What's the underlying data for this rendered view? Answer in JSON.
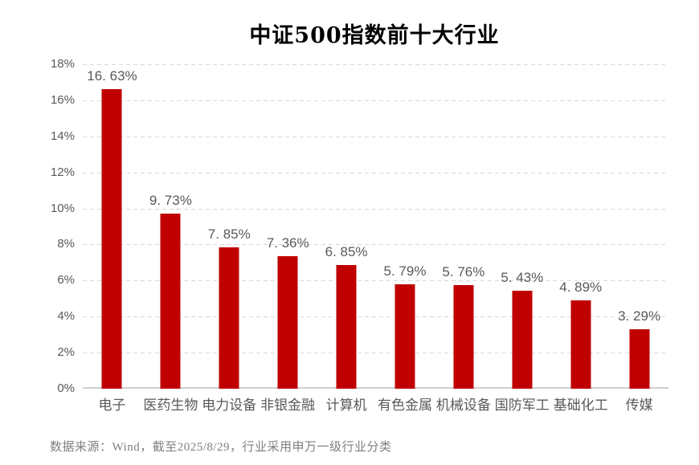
{
  "title": "中证500指数前十大行业",
  "source_note": "数据来源：Wind，截至2025/8/29，行业采用申万一级行业分类",
  "colors": {
    "bar": "#c00000",
    "gridline": "#d9d9d9",
    "axis_line": "#cfcfcf",
    "tick_label": "#595959",
    "value_label": "#595959",
    "category_label": "#595959",
    "source_note": "#7f7f7f",
    "title": "#000000",
    "background": "#ffffff"
  },
  "chart_data": {
    "type": "bar",
    "title": "中证500指数前十大行业",
    "categories": [
      "电子",
      "医药生物",
      "电力设备",
      "非银金融",
      "计算机",
      "有色金属",
      "机械设备",
      "国防军工",
      "基础化工",
      "传媒"
    ],
    "values": [
      16.63,
      9.73,
      7.85,
      7.36,
      6.85,
      5.79,
      5.76,
      5.43,
      4.89,
      3.29
    ],
    "data_labels": [
      "16. 63%",
      "9. 73%",
      "7. 85%",
      "7. 36%",
      "6. 85%",
      "5. 79%",
      "5. 76%",
      "5. 43%",
      "4. 89%",
      "3. 29%"
    ],
    "y_ticks": [
      "0%",
      "2%",
      "4%",
      "6%",
      "8%",
      "10%",
      "12%",
      "14%",
      "16%",
      "18%"
    ],
    "ylim": [
      0,
      18
    ],
    "y_tick_step": 2,
    "xlabel": "",
    "ylabel": "",
    "grid": "horizontal-dashed",
    "legend": "none",
    "bar_color": "#c00000"
  }
}
